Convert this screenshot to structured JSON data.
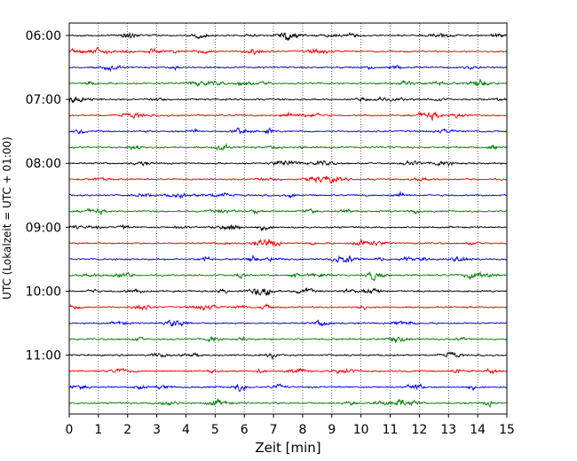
{
  "chart_data": {
    "type": "line",
    "subtype": "helicorder (seismogram drum plot)",
    "xlabel": "Zeit  [min]",
    "ylabel": "UTC (Lokalzeit = UTC + 01:00)",
    "xlim": [
      0,
      15
    ],
    "x_ticks": [
      0,
      1,
      2,
      3,
      4,
      5,
      6,
      7,
      8,
      9,
      10,
      11,
      12,
      13,
      14,
      15
    ],
    "y_tick_labels": [
      "06:00",
      "07:00",
      "08:00",
      "09:00",
      "10:00",
      "11:00"
    ],
    "start_time": "06:00",
    "trace_interval_minutes": 15,
    "trace_count": 24,
    "trace_color_cycle": [
      "#000000",
      "#ff0000",
      "#0000ff",
      "#008000"
    ],
    "vertical_grid": "dotted, every minute",
    "horizontal_grid": false,
    "legend": "none"
  }
}
